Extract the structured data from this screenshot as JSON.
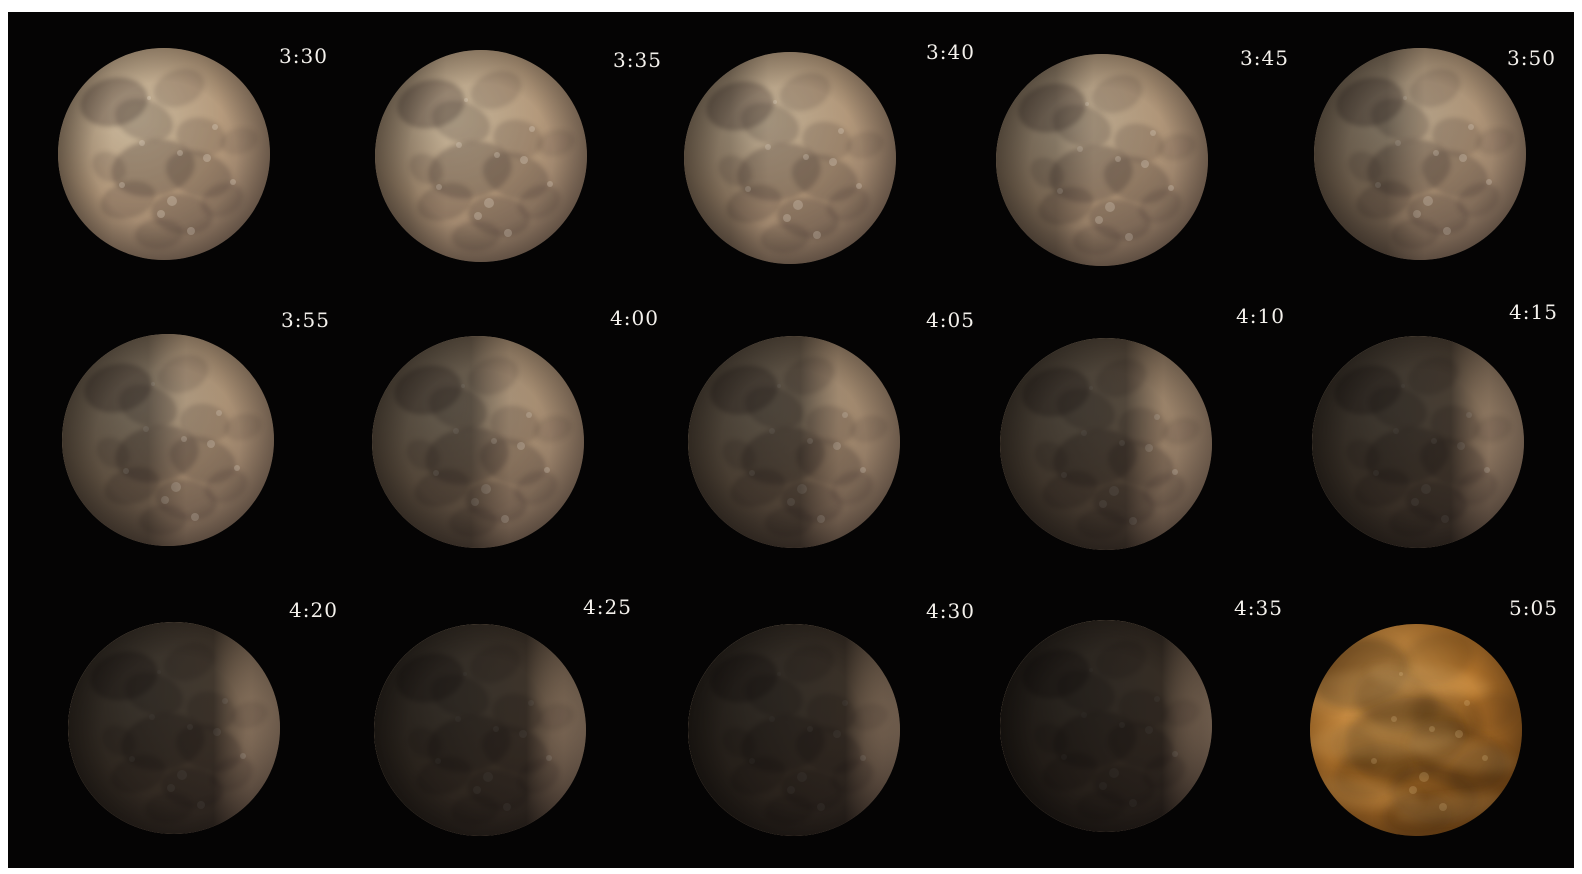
{
  "frames": [
    {
      "time": "3:30",
      "shadow": 0.1,
      "tone": "normal"
    },
    {
      "time": "3:35",
      "shadow": 0.2,
      "tone": "normal"
    },
    {
      "time": "3:40",
      "shadow": 0.28,
      "tone": "normal"
    },
    {
      "time": "3:45",
      "shadow": 0.36,
      "tone": "normal"
    },
    {
      "time": "3:50",
      "shadow": 0.44,
      "tone": "normal"
    },
    {
      "time": "3:55",
      "shadow": 0.52,
      "tone": "normal"
    },
    {
      "time": "4:00",
      "shadow": 0.6,
      "tone": "normal"
    },
    {
      "time": "4:05",
      "shadow": 0.68,
      "tone": "normal"
    },
    {
      "time": "4:10",
      "shadow": 0.76,
      "tone": "normal"
    },
    {
      "time": "4:15",
      "shadow": 0.84,
      "tone": "normal"
    },
    {
      "time": "4:20",
      "shadow": 0.88,
      "tone": "normal"
    },
    {
      "time": "4:25",
      "shadow": 0.92,
      "tone": "normal"
    },
    {
      "time": "4:30",
      "shadow": 0.95,
      "tone": "normal"
    },
    {
      "time": "4:35",
      "shadow": 0.98,
      "tone": "normal"
    },
    {
      "time": "5:05",
      "shadow": 0.0,
      "tone": "golden-cloudy"
    }
  ],
  "colors": {
    "background": "#050404",
    "moon_light": "#cdbca0",
    "moon_mid": "#b69b7d",
    "moon_dark": "#7d6757",
    "golden_light": "#d8a35b",
    "golden_mid": "#b8782e",
    "golden_dark": "#744617",
    "label": "#f4f1ec"
  }
}
